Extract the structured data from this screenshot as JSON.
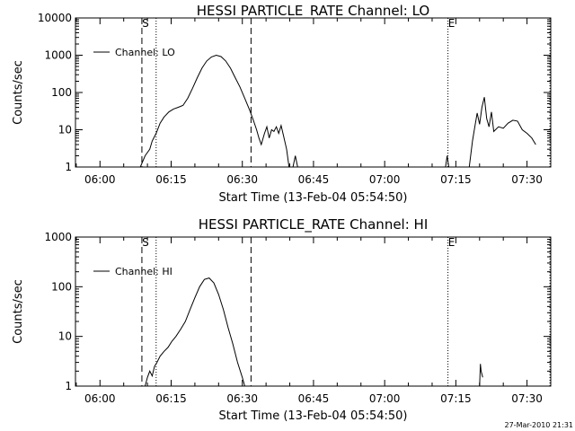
{
  "chart_data": [
    {
      "type": "line",
      "title": "HESSI PARTICLE_RATE Channel: LO",
      "xlabel": "Start Time (13-Feb-04 05:54:50)",
      "ylabel": "Counts/sec",
      "yscale": "log",
      "ylim": [
        1,
        10000
      ],
      "xlim": [
        "05:54:50",
        "07:35:00"
      ],
      "x_ticks": [
        "06:00",
        "06:15",
        "06:30",
        "06:45",
        "07:00",
        "07:15",
        "07:30"
      ],
      "y_ticks": [
        "1",
        "10",
        "100",
        "1000",
        "10000"
      ],
      "legend": {
        "label": "Channel: LO",
        "position": "top-left"
      },
      "vlines": [
        {
          "time": "06:08:50",
          "style": "dashed",
          "marker": "S"
        },
        {
          "time": "06:11:50",
          "style": "dotted",
          "marker": ""
        },
        {
          "time": "06:31:50",
          "style": "dashed",
          "marker": ""
        },
        {
          "time": "07:13:20",
          "style": "dotted",
          "marker": "E"
        },
        {
          "time": "07:34:50",
          "style": "dotted",
          "marker": ""
        }
      ],
      "series": [
        {
          "segments": [
            [
              [
                "06:08:30",
                1
              ],
              [
                "06:09:30",
                2
              ],
              [
                "06:10:30",
                3
              ],
              [
                "06:11:00",
                5
              ],
              [
                "06:11:50",
                8
              ],
              [
                "06:12:40",
                15
              ],
              [
                "06:13:30",
                22
              ],
              [
                "06:14:30",
                30
              ],
              [
                "06:15:30",
                36
              ],
              [
                "06:16:30",
                40
              ],
              [
                "06:17:30",
                45
              ],
              [
                "06:18:30",
                70
              ],
              [
                "06:19:30",
                130
              ],
              [
                "06:20:30",
                250
              ],
              [
                "06:21:30",
                450
              ],
              [
                "06:22:30",
                700
              ],
              [
                "06:23:30",
                900
              ],
              [
                "06:24:30",
                1000
              ],
              [
                "06:25:30",
                920
              ],
              [
                "06:26:30",
                700
              ],
              [
                "06:27:30",
                450
              ],
              [
                "06:28:30",
                250
              ],
              [
                "06:29:30",
                140
              ],
              [
                "06:30:30",
                70
              ],
              [
                "06:31:30",
                35
              ],
              [
                "06:32:20",
                18
              ],
              [
                "06:33:00",
                10
              ],
              [
                "06:33:30",
                6
              ],
              [
                "06:34:00",
                4
              ],
              [
                "06:34:40",
                8
              ],
              [
                "06:35:10",
                12
              ],
              [
                "06:35:40",
                6
              ],
              [
                "06:36:10",
                10
              ],
              [
                "06:36:40",
                9
              ],
              [
                "06:37:10",
                12
              ],
              [
                "06:37:40",
                8
              ],
              [
                "06:38:10",
                13
              ],
              [
                "06:38:40",
                7
              ],
              [
                "06:39:20",
                3
              ],
              [
                "06:39:50",
                1
              ]
            ],
            [
              [
                "06:40:40",
                1
              ],
              [
                "06:41:10",
                2
              ],
              [
                "06:41:40",
                1
              ]
            ],
            [
              [
                "07:12:50",
                1
              ],
              [
                "07:13:10",
                2
              ],
              [
                "07:13:30",
                1
              ]
            ],
            [
              [
                "07:17:50",
                1
              ],
              [
                "07:18:30",
                5
              ],
              [
                "07:19:00",
                12
              ],
              [
                "07:19:30",
                28
              ],
              [
                "07:20:00",
                14
              ],
              [
                "07:20:30",
                40
              ],
              [
                "07:21:00",
                75
              ],
              [
                "07:21:30",
                20
              ],
              [
                "07:22:00",
                12
              ],
              [
                "07:22:30",
                30
              ],
              [
                "07:23:00",
                9
              ],
              [
                "07:24:00",
                12
              ],
              [
                "07:25:00",
                11
              ],
              [
                "07:26:00",
                15
              ],
              [
                "07:27:00",
                18
              ],
              [
                "07:28:00",
                17
              ],
              [
                "07:29:00",
                10
              ],
              [
                "07:30:00",
                8
              ],
              [
                "07:31:00",
                6
              ],
              [
                "07:31:50",
                4
              ]
            ]
          ]
        }
      ]
    },
    {
      "type": "line",
      "title": "HESSI PARTICLE_RATE Channel: HI",
      "xlabel": "Start Time (13-Feb-04 05:54:50)",
      "ylabel": "Counts/sec",
      "yscale": "log",
      "ylim": [
        1,
        1000
      ],
      "xlim": [
        "05:54:50",
        "07:35:00"
      ],
      "x_ticks": [
        "06:00",
        "06:15",
        "06:30",
        "06:45",
        "07:00",
        "07:15",
        "07:30"
      ],
      "y_ticks": [
        "1",
        "10",
        "100",
        "1000"
      ],
      "legend": {
        "label": "Channel: HI",
        "position": "top-left"
      },
      "vlines": [
        {
          "time": "06:08:50",
          "style": "dashed",
          "marker": "S"
        },
        {
          "time": "06:11:50",
          "style": "dotted",
          "marker": ""
        },
        {
          "time": "06:31:50",
          "style": "dashed",
          "marker": ""
        },
        {
          "time": "07:13:20",
          "style": "dotted",
          "marker": "E"
        },
        {
          "time": "07:34:50",
          "style": "dotted",
          "marker": ""
        }
      ],
      "series": [
        {
          "segments": [
            [
              [
                "06:09:30",
                1
              ],
              [
                "06:10:00",
                1.5
              ],
              [
                "06:10:30",
                2
              ],
              [
                "06:11:00",
                1.6
              ],
              [
                "06:11:30",
                2.5
              ],
              [
                "06:12:00",
                3
              ],
              [
                "06:12:40",
                4
              ],
              [
                "06:13:30",
                5
              ],
              [
                "06:14:20",
                6
              ],
              [
                "06:15:10",
                8
              ],
              [
                "06:16:00",
                10
              ],
              [
                "06:17:00",
                14
              ],
              [
                "06:18:00",
                20
              ],
              [
                "06:19:00",
                35
              ],
              [
                "06:20:00",
                60
              ],
              [
                "06:21:00",
                100
              ],
              [
                "06:22:00",
                140
              ],
              [
                "06:23:00",
                150
              ],
              [
                "06:24:00",
                120
              ],
              [
                "06:25:00",
                70
              ],
              [
                "06:26:00",
                35
              ],
              [
                "06:27:00",
                15
              ],
              [
                "06:28:00",
                7
              ],
              [
                "06:29:00",
                3
              ],
              [
                "06:30:00",
                1.5
              ],
              [
                "06:30:30",
                1
              ]
            ],
            [
              [
                "07:20:00",
                1
              ],
              [
                "07:20:10",
                2.8
              ],
              [
                "07:20:20",
                2
              ],
              [
                "07:20:40",
                1.5
              ]
            ]
          ]
        }
      ]
    }
  ],
  "footer": {
    "timestamp": "27-Mar-2010 21:31"
  }
}
